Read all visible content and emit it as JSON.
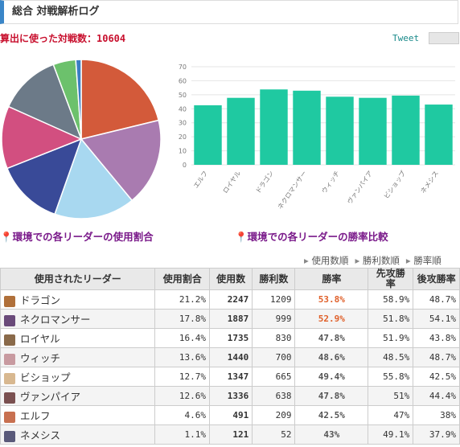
{
  "header": {
    "title": "総合 対戦解析ログ",
    "count_text": "算出に使った対戦数：10604",
    "tweet": "Tweet"
  },
  "chart_data": [
    {
      "type": "pie",
      "values": [
        21.2,
        17.8,
        16.4,
        13.6,
        12.7,
        12.6,
        4.6,
        1.1
      ],
      "colors": [
        "#d35a3a",
        "#a97bb0",
        "#a8d8f0",
        "#394a98",
        "#d24f80",
        "#6c7a88",
        "#6cc16c",
        "#3a7ec4"
      ],
      "caption": "環境での各リーダーの使用割合"
    },
    {
      "type": "bar",
      "categories": [
        "エルフ",
        "ロイヤル",
        "ドラゴン",
        "ネクロマンサー",
        "ウィッチ",
        "ヴァンパイア",
        "ビショップ",
        "ネメシス"
      ],
      "values": [
        42.5,
        47.8,
        53.8,
        52.9,
        48.6,
        47.8,
        49.4,
        43
      ],
      "color": "#1fc9a1",
      "ylim": [
        0,
        70
      ],
      "yticks": [
        0,
        10,
        20,
        30,
        40,
        50,
        60,
        70
      ],
      "grid": true,
      "caption": "環境での各リーダーの勝率比較"
    }
  ],
  "sort_links": [
    "使用数順",
    "勝利数順",
    "勝率順"
  ],
  "table": {
    "columns": [
      "使用されたリーダー",
      "使用割合",
      "使用数",
      "勝利数",
      "勝率",
      "先攻勝率",
      "後攻勝率"
    ],
    "rows": [
      [
        "ドラゴン",
        "21.2%",
        "2247",
        "1209",
        "53.8%",
        "58.9%",
        "48.7%"
      ],
      [
        "ネクロマンサー",
        "17.8%",
        "1887",
        "999",
        "52.9%",
        "51.8%",
        "54.1%"
      ],
      [
        "ロイヤル",
        "16.4%",
        "1735",
        "830",
        "47.8%",
        "51.9%",
        "43.8%"
      ],
      [
        "ウィッチ",
        "13.6%",
        "1440",
        "700",
        "48.6%",
        "48.5%",
        "48.7%"
      ],
      [
        "ビショップ",
        "12.7%",
        "1347",
        "665",
        "49.4%",
        "55.8%",
        "42.5%"
      ],
      [
        "ヴァンパイア",
        "12.6%",
        "1336",
        "638",
        "47.8%",
        "51%",
        "44.4%"
      ],
      [
        "エルフ",
        "4.6%",
        "491",
        "209",
        "42.5%",
        "47%",
        "38%"
      ],
      [
        "ネメシス",
        "1.1%",
        "121",
        "52",
        "43%",
        "49.1%",
        "37.9%"
      ]
    ]
  }
}
